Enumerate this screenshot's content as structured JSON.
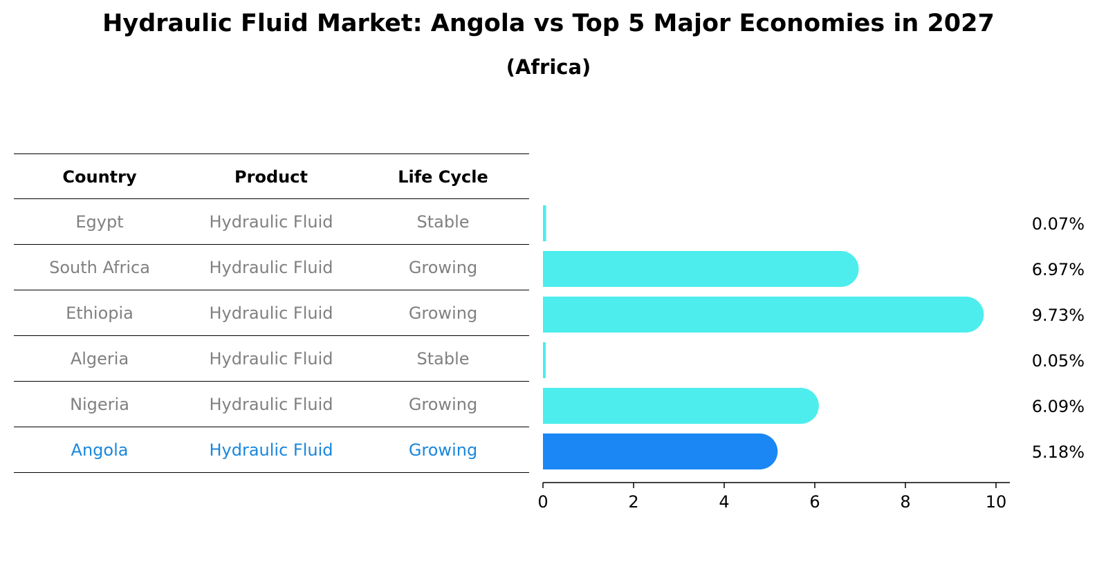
{
  "title": "Hydraulic Fluid Market: Angola vs Top 5 Major Economies in 2027",
  "subtitle": "(Africa)",
  "table": {
    "headers": [
      "Country",
      "Product",
      "Life Cycle"
    ],
    "rows": [
      {
        "country": "Egypt",
        "product": "Hydraulic Fluid",
        "life_cycle": "Stable"
      },
      {
        "country": "South Africa",
        "product": "Hydraulic Fluid",
        "life_cycle": "Growing"
      },
      {
        "country": "Ethiopia",
        "product": "Hydraulic Fluid",
        "life_cycle": "Growing"
      },
      {
        "country": "Algeria",
        "product": "Hydraulic Fluid",
        "life_cycle": "Stable"
      },
      {
        "country": "Nigeria",
        "product": "Hydraulic Fluid",
        "life_cycle": "Growing"
      },
      {
        "country": "Angola",
        "product": "Hydraulic Fluid",
        "life_cycle": "Growing"
      }
    ],
    "highlight_row": "Angola"
  },
  "colors": {
    "bar": "#4deded",
    "highlight_bar": "#1a87f5",
    "highlight_text": "#1a87dd",
    "muted_text": "#808080"
  },
  "chart_data": {
    "type": "bar",
    "orientation": "horizontal",
    "categories": [
      "Egypt",
      "South Africa",
      "Ethiopia",
      "Algeria",
      "Nigeria",
      "Angola"
    ],
    "values": [
      0.07,
      6.97,
      9.73,
      0.05,
      6.09,
      5.18
    ],
    "value_labels": [
      "0.07%",
      "6.97%",
      "9.73%",
      "0.05%",
      "6.09%",
      "5.18%"
    ],
    "highlight": "Angola",
    "xlim": [
      0,
      10
    ],
    "xticks": [
      0,
      2,
      4,
      6,
      8,
      10
    ],
    "xtick_labels": [
      "0",
      "2",
      "4",
      "6",
      "8",
      "10"
    ],
    "grid": false
  }
}
